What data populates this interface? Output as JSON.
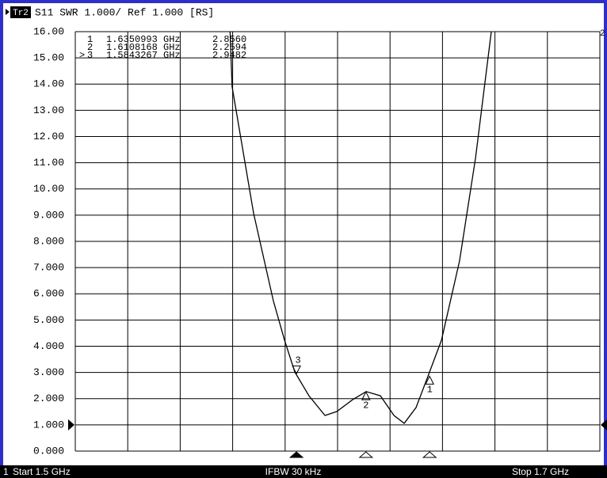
{
  "chart_data": {
    "type": "line",
    "trace": "Tr2",
    "title": "S11 SWR 1.000/ Ref 1.000 [RS]",
    "channel": "1",
    "start_label": "Start 1.5 GHz",
    "center_label": "IFBW 30 kHz",
    "stop_label": "Stop 1.7 GHz",
    "trace_number": "2",
    "active_symbol": ">",
    "xlim": [
      1.5,
      1.7
    ],
    "xticks": [
      1.5,
      1.52,
      1.54,
      1.56,
      1.58,
      1.6,
      1.62,
      1.64,
      1.66,
      1.68,
      1.7
    ],
    "ylim": [
      0,
      16
    ],
    "yticks": [
      {
        "value": 0,
        "label": "0.000"
      },
      {
        "value": 1,
        "label": "1.000"
      },
      {
        "value": 2,
        "label": "2.000"
      },
      {
        "value": 3,
        "label": "3.000"
      },
      {
        "value": 4,
        "label": "4.000"
      },
      {
        "value": 5,
        "label": "5.000"
      },
      {
        "value": 6,
        "label": "6.000"
      },
      {
        "value": 7,
        "label": "7.000"
      },
      {
        "value": 8,
        "label": "8.000"
      },
      {
        "value": 9,
        "label": "9.000"
      },
      {
        "value": 10,
        "label": "10.00"
      },
      {
        "value": 11,
        "label": "11.00"
      },
      {
        "value": 12,
        "label": "12.00"
      },
      {
        "value": 13,
        "label": "13.00"
      },
      {
        "value": 14,
        "label": "14.00"
      },
      {
        "value": 15,
        "label": "15.00"
      },
      {
        "value": 16,
        "label": "16.00"
      }
    ],
    "reference": 1,
    "grid": true,
    "series": [
      {
        "name": "S11",
        "color": "#000000",
        "x": [
          1.5589,
          1.5598,
          1.568,
          1.5755,
          1.5798,
          1.5837,
          1.5891,
          1.5952,
          1.5997,
          1.6057,
          1.6109,
          1.6163,
          1.6215,
          1.6254,
          1.6299,
          1.6344,
          1.6396,
          1.6465,
          1.6526,
          1.6586
        ],
        "values": [
          16.3,
          13.9,
          9.06,
          5.74,
          4.23,
          3.02,
          2.11,
          1.36,
          1.51,
          1.96,
          2.27,
          2.11,
          1.36,
          1.06,
          1.66,
          2.84,
          4.23,
          7.25,
          11.18,
          16.0
        ]
      }
    ],
    "markers": [
      {
        "id": "1",
        "x": 1.6350993,
        "x_label": "1.6350993 GHz",
        "value": 2.856,
        "value_label": "2.8560",
        "active": false
      },
      {
        "id": "2",
        "x": 1.6108168,
        "x_label": "1.6108168 GHz",
        "value": 2.2594,
        "value_label": "2.2594",
        "active": false
      },
      {
        "id": "3",
        "x": 1.5843267,
        "x_label": "1.5843267 GHz",
        "value": 2.9482,
        "value_label": "2.9482",
        "active": true
      }
    ]
  }
}
